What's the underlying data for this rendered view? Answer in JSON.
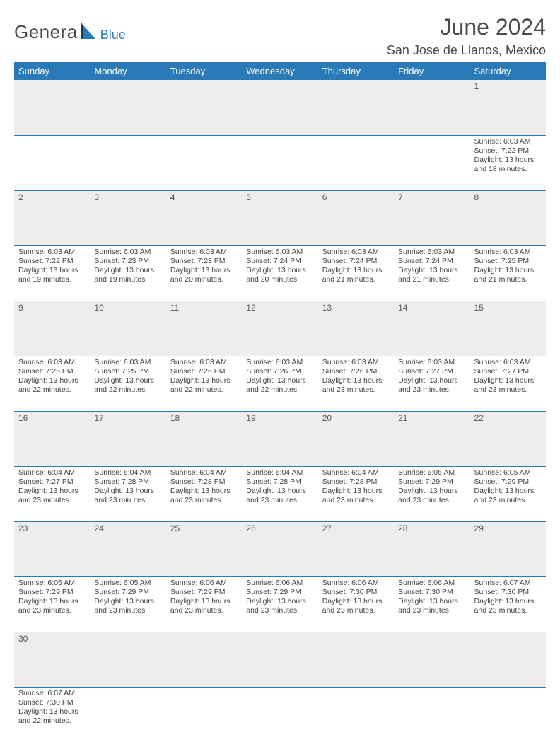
{
  "brand": {
    "main": "Genera",
    "sub": "Blue",
    "main_color": "#4a4a4a",
    "sub_color": "#2a7ab8"
  },
  "title": "June 2024",
  "subtitle": "San Jose de Llanos, Mexico",
  "colors": {
    "header_bg": "#2a7ab8",
    "header_text": "#ffffff",
    "daynum_bg": "#eeeeee",
    "cell_border": "#2a7ab8",
    "body_text": "#444444",
    "title_color": "#4a4a4a"
  },
  "fonts": {
    "title_size": 32,
    "subtitle_size": 18,
    "header_size": 13,
    "daynum_size": 12,
    "body_size": 10.5
  },
  "columns": [
    "Sunday",
    "Monday",
    "Tuesday",
    "Wednesday",
    "Thursday",
    "Friday",
    "Saturday"
  ],
  "weeks": [
    [
      null,
      null,
      null,
      null,
      null,
      null,
      {
        "n": "1",
        "sr": "6:03 AM",
        "ss": "7:22 PM",
        "dl": "13 hours and 18 minutes."
      }
    ],
    [
      {
        "n": "2",
        "sr": "6:03 AM",
        "ss": "7:22 PM",
        "dl": "13 hours and 19 minutes."
      },
      {
        "n": "3",
        "sr": "6:03 AM",
        "ss": "7:23 PM",
        "dl": "13 hours and 19 minutes."
      },
      {
        "n": "4",
        "sr": "6:03 AM",
        "ss": "7:23 PM",
        "dl": "13 hours and 20 minutes."
      },
      {
        "n": "5",
        "sr": "6:03 AM",
        "ss": "7:24 PM",
        "dl": "13 hours and 20 minutes."
      },
      {
        "n": "6",
        "sr": "6:03 AM",
        "ss": "7:24 PM",
        "dl": "13 hours and 21 minutes."
      },
      {
        "n": "7",
        "sr": "6:03 AM",
        "ss": "7:24 PM",
        "dl": "13 hours and 21 minutes."
      },
      {
        "n": "8",
        "sr": "6:03 AM",
        "ss": "7:25 PM",
        "dl": "13 hours and 21 minutes."
      }
    ],
    [
      {
        "n": "9",
        "sr": "6:03 AM",
        "ss": "7:25 PM",
        "dl": "13 hours and 22 minutes."
      },
      {
        "n": "10",
        "sr": "6:03 AM",
        "ss": "7:25 PM",
        "dl": "13 hours and 22 minutes."
      },
      {
        "n": "11",
        "sr": "6:03 AM",
        "ss": "7:26 PM",
        "dl": "13 hours and 22 minutes."
      },
      {
        "n": "12",
        "sr": "6:03 AM",
        "ss": "7:26 PM",
        "dl": "13 hours and 22 minutes."
      },
      {
        "n": "13",
        "sr": "6:03 AM",
        "ss": "7:26 PM",
        "dl": "13 hours and 23 minutes."
      },
      {
        "n": "14",
        "sr": "6:03 AM",
        "ss": "7:27 PM",
        "dl": "13 hours and 23 minutes."
      },
      {
        "n": "15",
        "sr": "6:03 AM",
        "ss": "7:27 PM",
        "dl": "13 hours and 23 minutes."
      }
    ],
    [
      {
        "n": "16",
        "sr": "6:04 AM",
        "ss": "7:27 PM",
        "dl": "13 hours and 23 minutes."
      },
      {
        "n": "17",
        "sr": "6:04 AM",
        "ss": "7:28 PM",
        "dl": "13 hours and 23 minutes."
      },
      {
        "n": "18",
        "sr": "6:04 AM",
        "ss": "7:28 PM",
        "dl": "13 hours and 23 minutes."
      },
      {
        "n": "19",
        "sr": "6:04 AM",
        "ss": "7:28 PM",
        "dl": "13 hours and 23 minutes."
      },
      {
        "n": "20",
        "sr": "6:04 AM",
        "ss": "7:28 PM",
        "dl": "13 hours and 23 minutes."
      },
      {
        "n": "21",
        "sr": "6:05 AM",
        "ss": "7:29 PM",
        "dl": "13 hours and 23 minutes."
      },
      {
        "n": "22",
        "sr": "6:05 AM",
        "ss": "7:29 PM",
        "dl": "13 hours and 23 minutes."
      }
    ],
    [
      {
        "n": "23",
        "sr": "6:05 AM",
        "ss": "7:29 PM",
        "dl": "13 hours and 23 minutes."
      },
      {
        "n": "24",
        "sr": "6:05 AM",
        "ss": "7:29 PM",
        "dl": "13 hours and 23 minutes."
      },
      {
        "n": "25",
        "sr": "6:06 AM",
        "ss": "7:29 PM",
        "dl": "13 hours and 23 minutes."
      },
      {
        "n": "26",
        "sr": "6:06 AM",
        "ss": "7:29 PM",
        "dl": "13 hours and 23 minutes."
      },
      {
        "n": "27",
        "sr": "6:06 AM",
        "ss": "7:30 PM",
        "dl": "13 hours and 23 minutes."
      },
      {
        "n": "28",
        "sr": "6:06 AM",
        "ss": "7:30 PM",
        "dl": "13 hours and 23 minutes."
      },
      {
        "n": "29",
        "sr": "6:07 AM",
        "ss": "7:30 PM",
        "dl": "13 hours and 23 minutes."
      }
    ],
    [
      {
        "n": "30",
        "sr": "6:07 AM",
        "ss": "7:30 PM",
        "dl": "13 hours and 22 minutes."
      },
      null,
      null,
      null,
      null,
      null,
      null
    ]
  ],
  "labels": {
    "sunrise": "Sunrise:",
    "sunset": "Sunset:",
    "daylight": "Daylight:"
  }
}
